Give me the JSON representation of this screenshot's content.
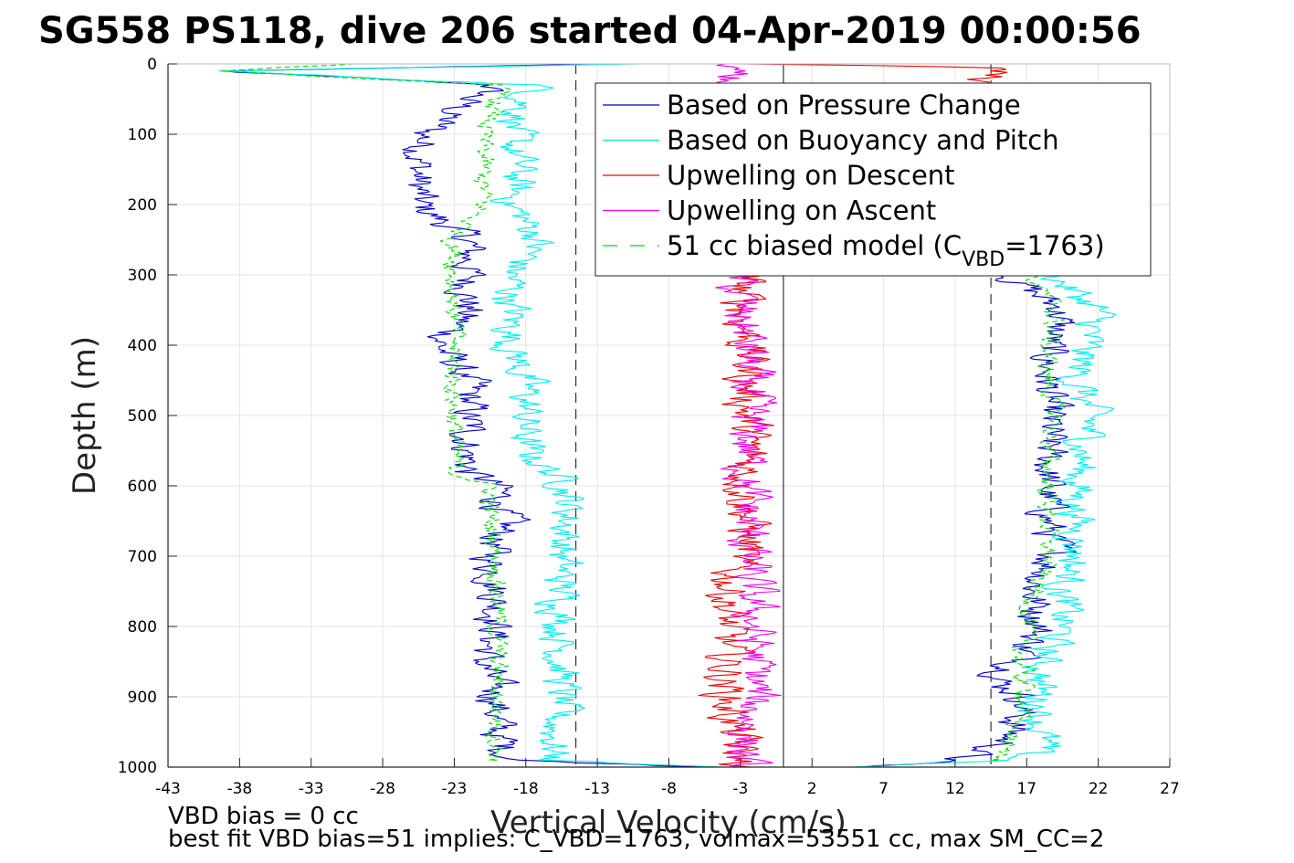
{
  "chart_data": {
    "type": "line",
    "title": "SG558 PS118, dive 206 started 04-Apr-2019 00:00:56",
    "xlabel": "Vertical Velocity (cm/s)",
    "ylabel": "Depth (m)",
    "xlim": [
      -43,
      27
    ],
    "ylim": [
      0,
      1000
    ],
    "y_reversed": true,
    "xticks": [
      -43,
      -38,
      -33,
      -28,
      -23,
      -18,
      -13,
      -8,
      -3,
      2,
      7,
      12,
      17,
      22,
      27
    ],
    "yticks": [
      0,
      100,
      200,
      300,
      400,
      500,
      600,
      700,
      800,
      900,
      1000
    ],
    "grid": true,
    "legend_position": "top-right",
    "legend": [
      {
        "label": "Based on Pressure Change",
        "color": "#0000cc",
        "dash": "solid"
      },
      {
        "label": "Based on Buoyancy and Pitch",
        "color": "#00eeee",
        "dash": "solid"
      },
      {
        "label": "Upwelling on Descent",
        "color": "#ee0000",
        "dash": "solid"
      },
      {
        "label": "Upwelling on Ascent",
        "color": "#ee00ee",
        "dash": "solid"
      },
      {
        "label_main": "51 cc biased model (C",
        "label_sub": "VBD",
        "label_tail": "=1763)",
        "color": "#00dd00",
        "dash": "dashed"
      }
    ],
    "reference_lines": [
      {
        "x": -14.5,
        "style": "dashed"
      },
      {
        "x": 0,
        "style": "solid"
      },
      {
        "x": 14.5,
        "style": "dashed"
      }
    ],
    "series": [
      {
        "name": "Based on Pressure Change",
        "color": "#0000cc",
        "descent": {
          "depth": [
            0,
            10,
            30,
            50,
            100,
            150,
            200,
            250,
            300,
            350,
            400,
            450,
            500,
            550,
            580,
            600,
            650,
            700,
            750,
            800,
            850,
            900,
            950,
            990,
            1000
          ],
          "velocity": [
            -12,
            -40,
            -20,
            -22,
            -25,
            -25.5,
            -25.5,
            -22,
            -22,
            -22,
            -24,
            -22,
            -22,
            -22,
            -22,
            -20,
            -19.5,
            -20.5,
            -20,
            -20,
            -21,
            -20,
            -20,
            -19,
            -5
          ]
        },
        "ascent": {
          "depth": [
            1000,
            990,
            970,
            950,
            900,
            880,
            850,
            800,
            750,
            700,
            650,
            600,
            550,
            500,
            450,
            400,
            350,
            320,
            300
          ],
          "velocity": [
            5,
            12,
            15,
            16,
            17,
            15,
            16.5,
            18,
            17.5,
            19,
            18.5,
            18.5,
            18.5,
            18.5,
            18.5,
            18.5,
            19.5,
            17,
            16
          ]
        }
      },
      {
        "name": "Based on Buoyancy and Pitch",
        "color": "#00eeee",
        "descent": {
          "depth": [
            0,
            10,
            30,
            50,
            100,
            150,
            200,
            250,
            300,
            350,
            400,
            450,
            500,
            550,
            600,
            650,
            700,
            750,
            800,
            850,
            900,
            950,
            990,
            1000
          ],
          "velocity": [
            -10,
            -40,
            -17,
            -18,
            -19,
            -18.5,
            -19,
            -17,
            -19,
            -19,
            -19,
            -18,
            -18,
            -18,
            -15,
            -15,
            -15.5,
            -15.5,
            -15.5,
            -15.5,
            -15.5,
            -16,
            -16,
            -5
          ]
        },
        "ascent": {
          "depth": [
            1000,
            990,
            970,
            950,
            900,
            850,
            800,
            750,
            700,
            650,
            600,
            550,
            500,
            450,
            400,
            350,
            320,
            300
          ],
          "velocity": [
            5,
            16,
            18,
            18,
            18,
            18,
            19.5,
            19.5,
            20.5,
            20.5,
            20.5,
            21,
            21.5,
            20.5,
            21,
            22,
            20,
            19
          ]
        }
      },
      {
        "name": "Upwelling on Descent",
        "color": "#ee0000",
        "descent": {
          "depth": [
            0,
            5,
            300,
            400,
            500,
            600,
            690,
            700,
            800,
            900,
            1000
          ],
          "velocity": [
            -3,
            15,
            -3,
            -2.5,
            -2.5,
            -2.5,
            -2.5,
            -3.5,
            -4,
            -4,
            -3
          ]
        }
      },
      {
        "name": "Upwelling on Ascent",
        "color": "#ee00ee",
        "ascent": {
          "depth": [
            0,
            10,
            300,
            400,
            500,
            600,
            700,
            800,
            900,
            1000
          ],
          "velocity": [
            -4,
            -4,
            -3.5,
            -2.5,
            -2.5,
            -2.5,
            -2.5,
            -2,
            -2,
            -3
          ]
        }
      },
      {
        "name": "51 cc biased model (C_VBD=1763)",
        "color": "#00dd00",
        "dashed": true,
        "descent": {
          "depth": [
            0,
            10,
            30,
            50,
            100,
            150,
            200,
            250,
            300,
            350,
            400,
            450,
            500,
            550,
            580,
            600,
            650,
            700,
            750,
            800,
            850,
            900,
            950,
            990
          ],
          "velocity": [
            -30,
            -40,
            -20,
            -20,
            -21,
            -21,
            -21,
            -23,
            -23,
            -23,
            -23,
            -23,
            -23,
            -23,
            -23,
            -20.5,
            -20.5,
            -20,
            -20,
            -20,
            -20,
            -20,
            -20,
            -20
          ]
        },
        "ascent": {
          "depth": [
            990,
            950,
            900,
            850,
            800,
            750,
            700,
            650,
            600,
            550,
            500,
            450,
            400,
            350,
            320,
            300
          ],
          "velocity": [
            15,
            16,
            17,
            16.5,
            17,
            17.5,
            18.5,
            18.5,
            18.5,
            18.5,
            19,
            18.5,
            18.5,
            19,
            18,
            17
          ]
        }
      }
    ]
  },
  "footer": {
    "line1": "VBD bias = 0 cc",
    "line2": "best fit VBD bias=51 implies: C_VBD=1763, volmax=53551 cc, max SM_CC=2"
  },
  "colors": {
    "axis": "#262626",
    "grid": "#e3e3e3",
    "background": "#ffffff"
  }
}
